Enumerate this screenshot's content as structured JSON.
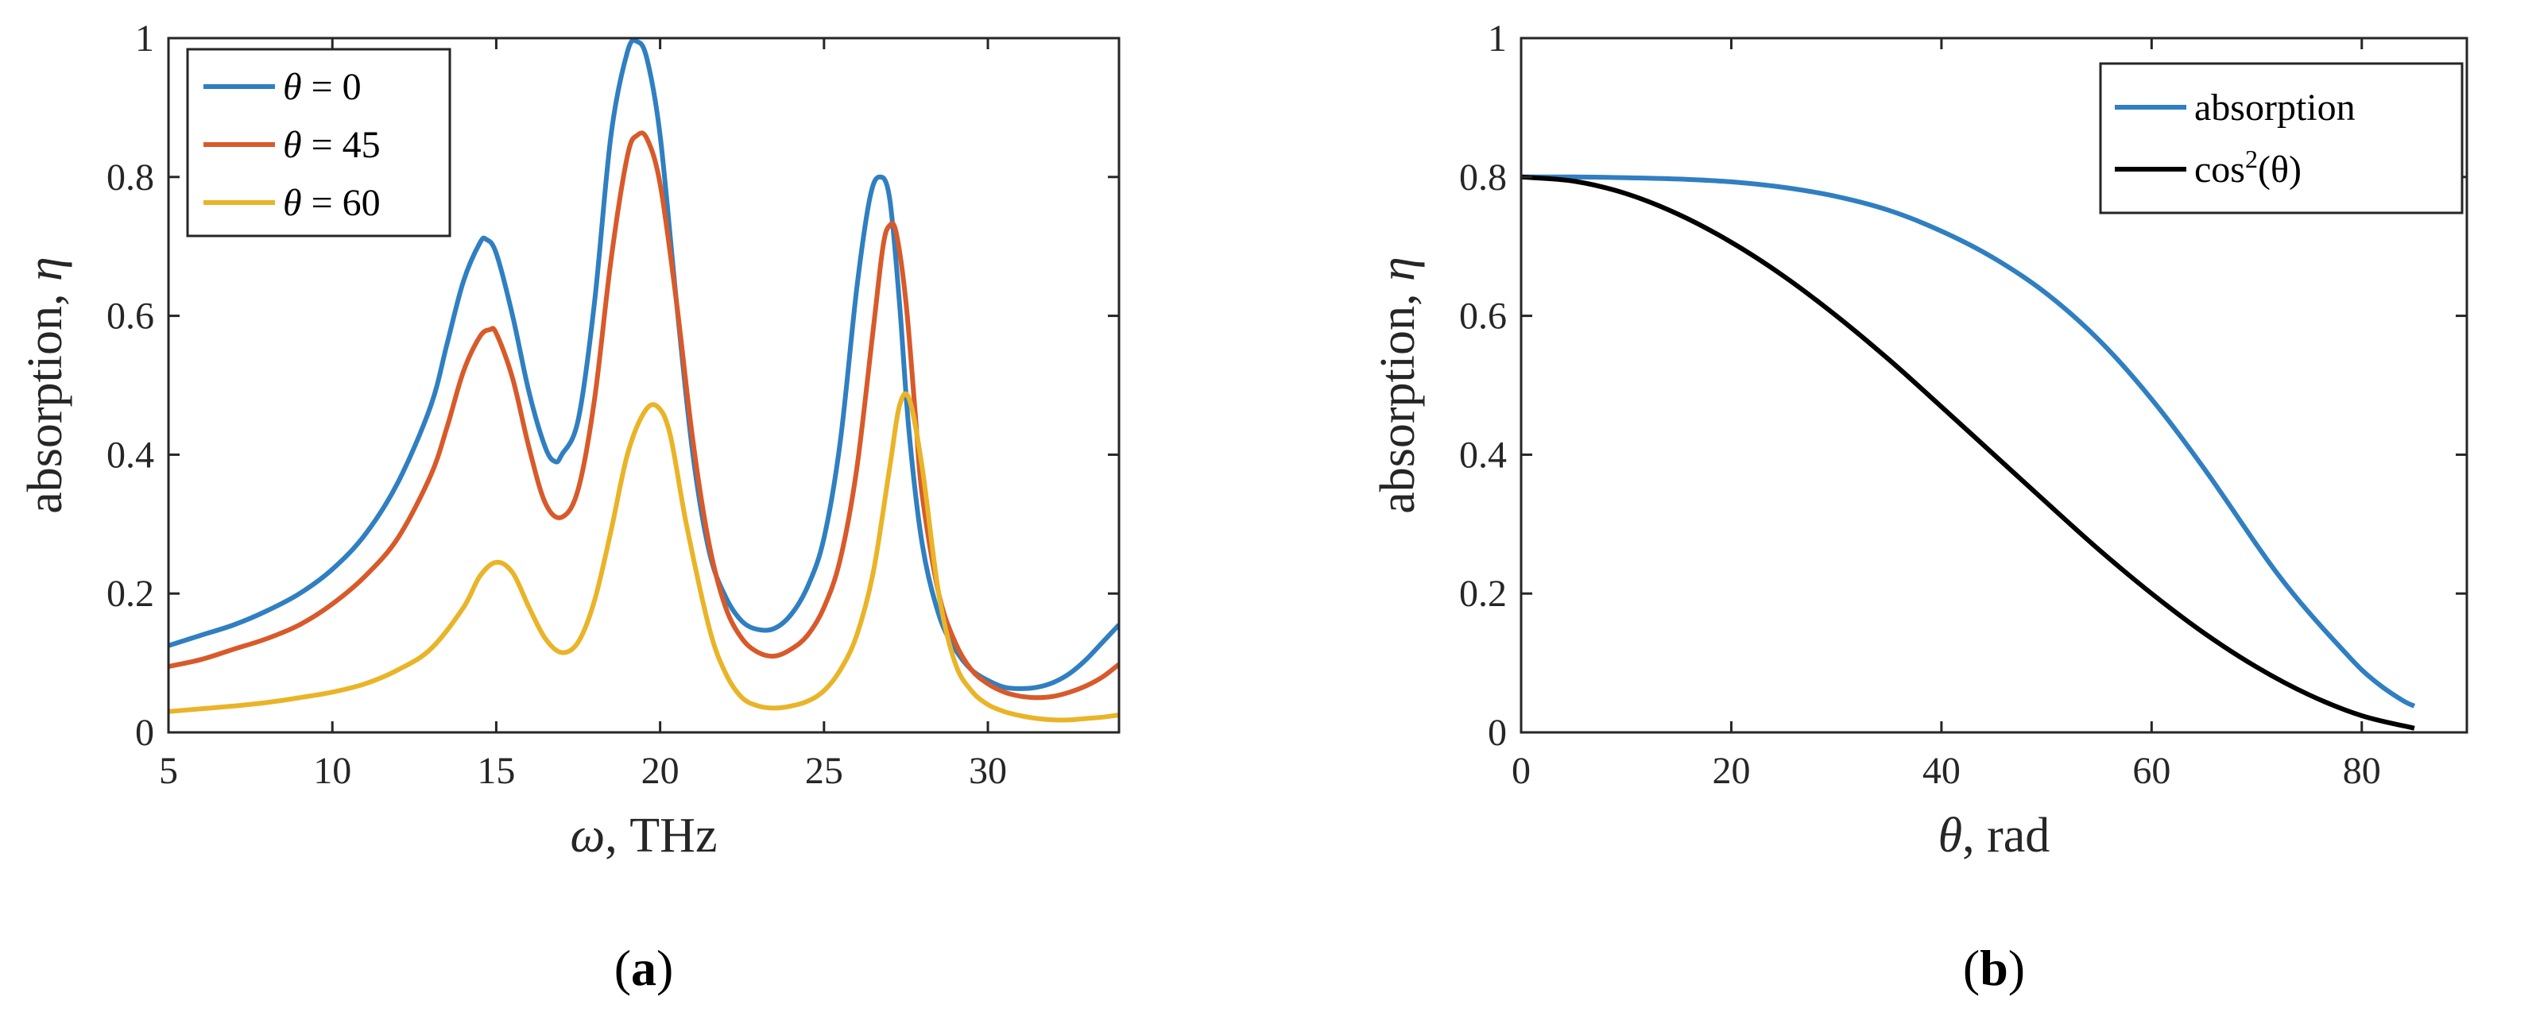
{
  "chart_data": [
    {
      "type": "line",
      "panel_label": "a",
      "xlabel": {
        "symbol": "ω",
        "rest": ", THz"
      },
      "ylabel": {
        "text": "absorption, ",
        "symbol": "η"
      },
      "xlim": [
        5,
        34
      ],
      "ylim": [
        0,
        1
      ],
      "xticks": [
        5,
        10,
        15,
        20,
        25,
        30
      ],
      "yticks": [
        0,
        0.2,
        0.4,
        0.6,
        0.8,
        1
      ],
      "ytick_labels": [
        "0",
        "0.2",
        "0.4",
        "0.6",
        "0.8",
        "1"
      ],
      "legend_position": "top-left",
      "series": [
        {
          "legend_symbol": "θ",
          "legend_rest": " = 0",
          "color": "#2f7fc1",
          "x": [
            5,
            6,
            7,
            8,
            9,
            10,
            11,
            12,
            13,
            13.5,
            14,
            14.5,
            14.7,
            15,
            15.5,
            16,
            16.5,
            16.8,
            17,
            17.5,
            18,
            18.5,
            19,
            19.3,
            19.6,
            20,
            20.5,
            21,
            21.5,
            22,
            22.5,
            23,
            23.5,
            24,
            24.5,
            25,
            25.5,
            26,
            26.4,
            26.7,
            27,
            27.3,
            27.6,
            28,
            28.5,
            29,
            29.5,
            30,
            30.5,
            31,
            31.5,
            32,
            32.5,
            33,
            33.5,
            34
          ],
          "y": [
            0.125,
            0.14,
            0.155,
            0.175,
            0.2,
            0.235,
            0.285,
            0.36,
            0.47,
            0.56,
            0.65,
            0.705,
            0.71,
            0.69,
            0.6,
            0.49,
            0.41,
            0.39,
            0.4,
            0.45,
            0.62,
            0.86,
            0.98,
            0.995,
            0.97,
            0.86,
            0.62,
            0.4,
            0.26,
            0.195,
            0.16,
            0.148,
            0.15,
            0.17,
            0.21,
            0.28,
            0.42,
            0.64,
            0.77,
            0.8,
            0.77,
            0.62,
            0.43,
            0.27,
            0.17,
            0.12,
            0.09,
            0.075,
            0.065,
            0.063,
            0.065,
            0.072,
            0.085,
            0.105,
            0.13,
            0.155
          ]
        },
        {
          "legend_symbol": "θ",
          "legend_rest": " = 45",
          "color": "#d85a2a",
          "x": [
            5,
            6,
            7,
            8,
            9,
            10,
            11,
            12,
            13,
            13.5,
            14,
            14.5,
            14.8,
            15,
            15.5,
            16,
            16.5,
            17,
            17.5,
            18,
            18.5,
            19,
            19.3,
            19.6,
            20,
            20.5,
            21,
            21.5,
            22,
            22.5,
            23,
            23.5,
            24,
            24.5,
            25,
            25.5,
            26,
            26.5,
            26.8,
            27,
            27.2,
            27.5,
            27.8,
            28,
            28.5,
            29,
            29.5,
            30,
            30.5,
            31,
            31.5,
            32,
            32.5,
            33,
            33.5,
            34
          ],
          "y": [
            0.095,
            0.105,
            0.12,
            0.135,
            0.155,
            0.185,
            0.225,
            0.28,
            0.37,
            0.44,
            0.52,
            0.57,
            0.58,
            0.575,
            0.51,
            0.41,
            0.33,
            0.31,
            0.35,
            0.48,
            0.68,
            0.83,
            0.86,
            0.855,
            0.79,
            0.62,
            0.42,
            0.27,
            0.18,
            0.135,
            0.115,
            0.11,
            0.12,
            0.14,
            0.18,
            0.25,
            0.38,
            0.58,
            0.7,
            0.73,
            0.72,
            0.62,
            0.45,
            0.34,
            0.2,
            0.13,
            0.09,
            0.07,
            0.058,
            0.052,
            0.05,
            0.052,
            0.058,
            0.067,
            0.08,
            0.098
          ]
        },
        {
          "legend_symbol": "θ",
          "legend_rest": " = 60",
          "color": "#e9b428",
          "x": [
            5,
            6,
            7,
            8,
            9,
            10,
            11,
            12,
            13,
            14,
            14.5,
            15,
            15.5,
            16,
            16.5,
            17,
            17.5,
            18,
            18.5,
            19,
            19.5,
            19.9,
            20.3,
            20.8,
            21.5,
            22,
            22.5,
            23,
            23.5,
            24,
            24.5,
            25,
            25.5,
            26,
            26.5,
            27,
            27.3,
            27.6,
            28,
            28.5,
            29,
            29.5,
            30,
            30.5,
            31,
            31.5,
            32,
            32.5,
            33,
            33.5,
            34
          ],
          "y": [
            0.03,
            0.034,
            0.038,
            0.043,
            0.05,
            0.058,
            0.07,
            0.09,
            0.12,
            0.18,
            0.225,
            0.245,
            0.23,
            0.18,
            0.135,
            0.115,
            0.13,
            0.19,
            0.29,
            0.4,
            0.46,
            0.47,
            0.43,
            0.3,
            0.15,
            0.085,
            0.05,
            0.038,
            0.035,
            0.038,
            0.045,
            0.06,
            0.09,
            0.14,
            0.23,
            0.38,
            0.47,
            0.48,
            0.38,
            0.2,
            0.1,
            0.06,
            0.04,
            0.03,
            0.024,
            0.02,
            0.018,
            0.018,
            0.02,
            0.022,
            0.025
          ]
        }
      ]
    },
    {
      "type": "line",
      "panel_label": "b",
      "xlabel": {
        "symbol": "θ",
        "rest": ", rad"
      },
      "ylabel": {
        "text": "absorption, ",
        "symbol": "η"
      },
      "xlim": [
        0,
        90
      ],
      "ylim": [
        0,
        1
      ],
      "xticks": [
        0,
        20,
        40,
        60,
        80
      ],
      "yticks": [
        0,
        0.2,
        0.4,
        0.6,
        0.8,
        1
      ],
      "ytick_labels": [
        "0",
        "0.2",
        "0.4",
        "0.6",
        "0.8",
        "1"
      ],
      "legend_position": "top-right",
      "series": [
        {
          "legend_text": "absorption",
          "color": "#2f7fc1",
          "x": [
            0,
            5,
            10,
            15,
            20,
            25,
            30,
            35,
            40,
            45,
            50,
            55,
            60,
            65,
            70,
            72,
            74,
            76,
            78,
            80,
            82,
            84,
            85
          ],
          "y": [
            0.8,
            0.8,
            0.799,
            0.797,
            0.793,
            0.785,
            0.772,
            0.752,
            0.722,
            0.683,
            0.632,
            0.565,
            0.48,
            0.38,
            0.27,
            0.228,
            0.19,
            0.155,
            0.122,
            0.09,
            0.065,
            0.045,
            0.038
          ]
        },
        {
          "legend_text": "cos",
          "legend_sup": "2",
          "legend_tail": "(θ)",
          "color": "#000000",
          "x": [
            0,
            5,
            10,
            15,
            20,
            25,
            30,
            35,
            40,
            45,
            50,
            55,
            60,
            65,
            70,
            75,
            80,
            85
          ],
          "y": [
            0.8,
            0.794,
            0.776,
            0.746,
            0.706,
            0.657,
            0.6,
            0.537,
            0.469,
            0.4,
            0.331,
            0.263,
            0.2,
            0.143,
            0.094,
            0.054,
            0.024,
            0.006
          ]
        }
      ]
    }
  ]
}
